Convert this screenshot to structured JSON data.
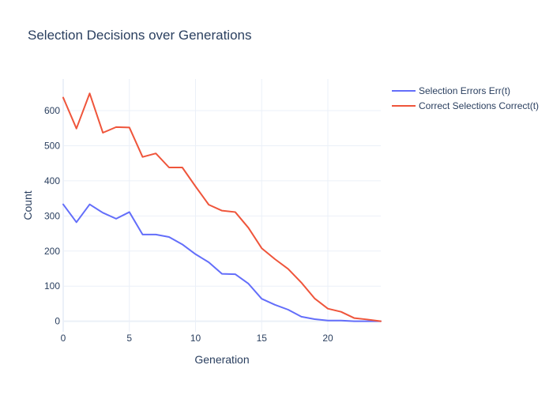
{
  "chart_data": {
    "type": "line",
    "title": "Selection Decisions over Generations",
    "xlabel": "Generation",
    "ylabel": "Count",
    "xlim": [
      0,
      24
    ],
    "ylim": [
      -30,
      690
    ],
    "x_ticks": [
      0,
      5,
      10,
      15,
      20
    ],
    "y_ticks": [
      0,
      100,
      200,
      300,
      400,
      500,
      600
    ],
    "grid": true,
    "legend_position": "top-right",
    "x": [
      0,
      1,
      2,
      3,
      4,
      5,
      6,
      7,
      8,
      9,
      10,
      11,
      12,
      13,
      14,
      15,
      16,
      17,
      18,
      19,
      20,
      21,
      22,
      23,
      24
    ],
    "series": [
      {
        "name": "Selection Errors Err(t)",
        "color": "#636efa",
        "values": [
          333,
          282,
          333,
          309,
          292,
          311,
          247,
          247,
          240,
          219,
          191,
          168,
          135,
          134,
          107,
          64,
          47,
          33,
          13,
          6,
          2,
          2,
          0,
          0,
          0
        ]
      },
      {
        "name": "Correct Selections Correct(t)",
        "color": "#ef553b",
        "values": [
          637,
          549,
          649,
          537,
          553,
          552,
          468,
          478,
          438,
          438,
          384,
          332,
          315,
          311,
          266,
          208,
          177,
          149,
          110,
          65,
          36,
          27,
          9,
          5,
          0
        ]
      }
    ]
  }
}
